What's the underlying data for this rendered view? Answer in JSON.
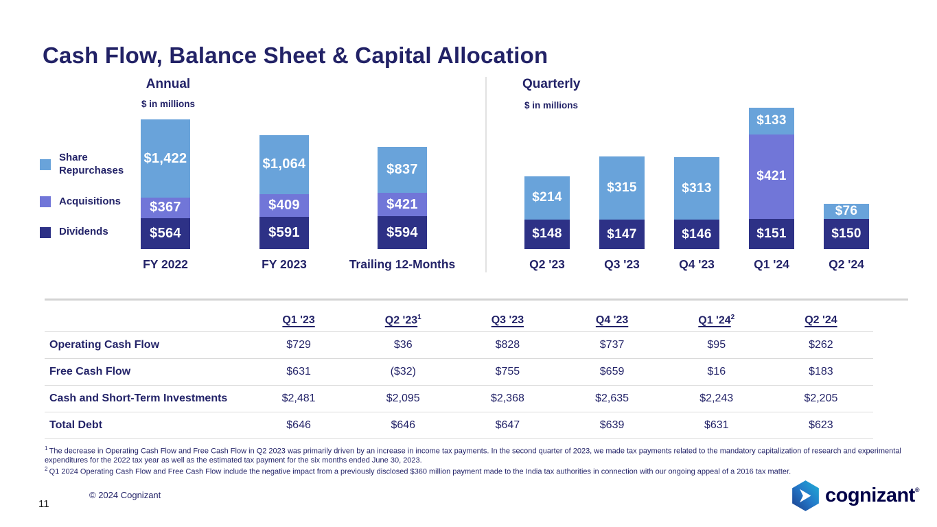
{
  "slide": {
    "title": "Cash Flow, Balance Sheet & Capital Allocation",
    "page_number": "11",
    "copyright": "© 2024 Cognizant",
    "logo_text": "cognizant",
    "logo_reg_mark": "®"
  },
  "chart_data": [
    {
      "type": "stacked_bar",
      "title": "Annual",
      "subtitle": "$ in millions",
      "value_prefix": "$",
      "legend_position": "left",
      "categories": [
        "FY 2022",
        "FY 2023",
        "Trailing 12-Months"
      ],
      "series": [
        {
          "name": "Share Repurchases",
          "color": "#69A3DA",
          "values": [
            1422,
            1064,
            837
          ]
        },
        {
          "name": "Acquisitions",
          "color": "#7176D8",
          "values": [
            367,
            409,
            421
          ]
        },
        {
          "name": "Dividends",
          "color": "#2D3186",
          "values": [
            564,
            591,
            594
          ]
        }
      ],
      "totals": [
        2353,
        2064,
        1852
      ]
    },
    {
      "type": "stacked_bar",
      "title": "Quarterly",
      "subtitle": "$ in millions",
      "value_prefix": "$",
      "categories": [
        "Q2 '23",
        "Q3 '23",
        "Q4 '23",
        "Q1 '24",
        "Q2 '24"
      ],
      "series": [
        {
          "name": "Share Repurchases",
          "color": "#69A3DA",
          "values": [
            214,
            315,
            313,
            133,
            76
          ]
        },
        {
          "name": "Acquisitions",
          "color": "#7176D8",
          "values": [
            0,
            0,
            0,
            421,
            0
          ]
        },
        {
          "name": "Dividends",
          "color": "#2D3186",
          "values": [
            148,
            147,
            146,
            151,
            150
          ]
        }
      ],
      "totals": [
        362,
        462,
        459,
        705,
        226
      ]
    }
  ],
  "table": {
    "columns": [
      {
        "label": "Q1 '23",
        "sup": ""
      },
      {
        "label": "Q2 '23",
        "sup": "1"
      },
      {
        "label": "Q3 '23",
        "sup": ""
      },
      {
        "label": "Q4 '23",
        "sup": ""
      },
      {
        "label": "Q1 '24",
        "sup": "2"
      },
      {
        "label": "Q2 '24",
        "sup": ""
      }
    ],
    "rows": [
      {
        "label": "Operating Cash Flow",
        "values": [
          "$729",
          "$36",
          "$828",
          "$737",
          "$95",
          "$262"
        ]
      },
      {
        "label": "Free Cash Flow",
        "values": [
          "$631",
          "($32)",
          "$755",
          "$659",
          "$16",
          "$183"
        ]
      },
      {
        "label": "Cash and Short-Term Investments",
        "values": [
          "$2,481",
          "$2,095",
          "$2,368",
          "$2,635",
          "$2,243",
          "$2,205"
        ]
      },
      {
        "label": "Total Debt",
        "values": [
          "$646",
          "$646",
          "$647",
          "$639",
          "$631",
          "$623"
        ]
      }
    ]
  },
  "footnotes": [
    {
      "sup": "1",
      "text": "The decrease in Operating Cash Flow and  Free Cash Flow in Q2 2023 was primarily driven by an increase in income tax payments. In the second quarter of 2023, we made tax payments related to the mandatory capitalization of research and experimental expenditures for the 2022 tax year as well as the estimated tax payment for the six months ended June 30, 2023."
    },
    {
      "sup": "2",
      "text": "Q1 2024 Operating Cash Flow and Free Cash Flow include the negative impact from a previously disclosed $360 million payment made to the India tax authorities in connection with our ongoing appeal of a 2016 tax matter."
    }
  ],
  "colors": {
    "navy_text": "#232368",
    "share_repurchases": "#69A3DA",
    "acquisitions": "#7176D8",
    "dividends": "#2D3186",
    "logo_navy": "#000048"
  }
}
